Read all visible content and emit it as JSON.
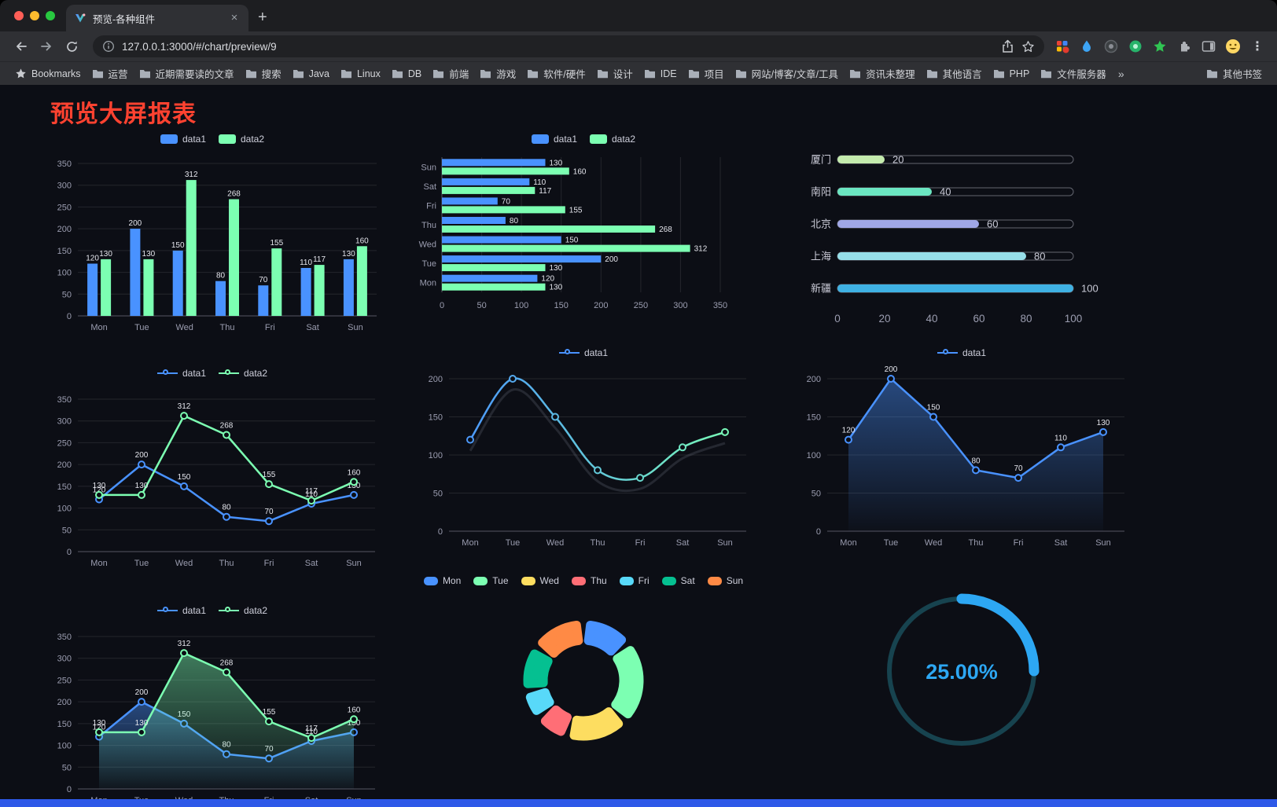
{
  "browser": {
    "tab_title": "预览-各种组件",
    "url": "127.0.0.1:3000/#/chart/preview/9",
    "bookmarks_label": "Bookmarks",
    "bookmarks": [
      "运营",
      "近期需要读的文章",
      "搜索",
      "Java",
      "Linux",
      "DB",
      "前端",
      "游戏",
      "软件/硬件",
      "设计",
      "IDE",
      "项目",
      "网站/博客/文章/工具",
      "资讯未整理",
      "其他语言",
      "PHP",
      "文件服务器"
    ],
    "other_bookmarks": "其他书签",
    "icons": {
      "close_tab": "×",
      "new_tab": "+",
      "overflow_chevron": "»",
      "menu": "⋮"
    }
  },
  "page": {
    "title": "预览大屏报表",
    "title_color": "#ff4230"
  },
  "chart_data": [
    {
      "id": "grouped-bar",
      "type": "bar",
      "categories": [
        "Mon",
        "Tue",
        "Wed",
        "Thu",
        "Fri",
        "Sat",
        "Sun"
      ],
      "series": [
        {
          "name": "data1",
          "color": "#4992ff",
          "values": [
            120,
            200,
            150,
            80,
            70,
            110,
            130
          ]
        },
        {
          "name": "data2",
          "color": "#7cffb2",
          "values": [
            130,
            130,
            312,
            268,
            155,
            117,
            160
          ]
        }
      ],
      "ylim": [
        0,
        350
      ],
      "ystep": 50,
      "labels": true,
      "grid": true,
      "legend": true,
      "legend_marker": "rect",
      "legend_position": "top"
    },
    {
      "id": "horizontal-bar",
      "type": "bar-horizontal",
      "categories": [
        "Mon",
        "Tue",
        "Wed",
        "Thu",
        "Fri",
        "Sat",
        "Sun"
      ],
      "series": [
        {
          "name": "data1",
          "color": "#4992ff",
          "values": [
            120,
            200,
            150,
            80,
            70,
            110,
            130
          ]
        },
        {
          "name": "data2",
          "color": "#7cffb2",
          "values": [
            130,
            130,
            312,
            268,
            155,
            117,
            160
          ]
        }
      ],
      "xlim": [
        0,
        350
      ],
      "xstep": 50,
      "labels": true,
      "grid": true,
      "legend": true,
      "legend_marker": "rect",
      "legend_position": "top"
    },
    {
      "id": "capsule-bar",
      "type": "capsule-bar",
      "items": [
        {
          "label": "厦门",
          "value": 20,
          "color": "#c4ebad"
        },
        {
          "label": "南阳",
          "value": 40,
          "color": "#6be6c1"
        },
        {
          "label": "北京",
          "value": 60,
          "color": "#a0a7e6"
        },
        {
          "label": "上海",
          "value": 80,
          "color": "#96dee8"
        },
        {
          "label": "新疆",
          "value": 100,
          "color": "#3fb1e3"
        }
      ],
      "xlim": [
        0,
        100
      ],
      "ticks": [
        0,
        20,
        40,
        60,
        80,
        100
      ],
      "legend": false
    },
    {
      "id": "multi-line",
      "type": "line",
      "categories": [
        "Mon",
        "Tue",
        "Wed",
        "Thu",
        "Fri",
        "Sat",
        "Sun"
      ],
      "series": [
        {
          "name": "data1",
          "color": "#4992ff",
          "values": [
            120,
            200,
            150,
            80,
            70,
            110,
            130
          ]
        },
        {
          "name": "data2",
          "color": "#7cffb2",
          "values": [
            130,
            130,
            312,
            268,
            155,
            117,
            160
          ]
        }
      ],
      "ylim": [
        0,
        350
      ],
      "ystep": 50,
      "labels": true,
      "grid": true,
      "legend": true,
      "legend_marker": "line",
      "legend_position": "top"
    },
    {
      "id": "gradient-line",
      "type": "line",
      "categories": [
        "Mon",
        "Tue",
        "Wed",
        "Thu",
        "Fri",
        "Sat",
        "Sun"
      ],
      "series": [
        {
          "name": "data1",
          "colorStops": [
            "#4992ff",
            "#7cffb2"
          ],
          "values": [
            120,
            200,
            150,
            80,
            70,
            110,
            130
          ],
          "smooth": true,
          "shadow": true
        }
      ],
      "ylim": [
        0,
        200
      ],
      "ystep": 50,
      "labels": false,
      "grid": true,
      "legend": true,
      "legend_marker": "line",
      "legend_position": "top"
    },
    {
      "id": "area-line-blue",
      "type": "line",
      "categories": [
        "Mon",
        "Tue",
        "Wed",
        "Thu",
        "Fri",
        "Sat",
        "Sun"
      ],
      "series": [
        {
          "name": "data1",
          "color": "#4992ff",
          "values": [
            120,
            200,
            150,
            80,
            70,
            110,
            130
          ],
          "area": "#4992ff"
        }
      ],
      "ylim": [
        0,
        200
      ],
      "ystep": 50,
      "labels": true,
      "grid": true,
      "legend": true,
      "legend_marker": "line",
      "legend_position": "top"
    },
    {
      "id": "area-line-two",
      "type": "line",
      "categories": [
        "Mon",
        "Tue",
        "Wed",
        "Thu",
        "Fri",
        "Sat",
        "Sun"
      ],
      "series": [
        {
          "name": "data1",
          "color": "#4992ff",
          "values": [
            120,
            200,
            150,
            80,
            70,
            110,
            130
          ],
          "area": "#4992ff"
        },
        {
          "name": "data2",
          "color": "#7cffb2",
          "values": [
            130,
            130,
            312,
            268,
            155,
            117,
            160
          ],
          "area": "#7cffb2"
        }
      ],
      "ylim": [
        0,
        350
      ],
      "ystep": 50,
      "labels": true,
      "grid": true,
      "legend": true,
      "legend_marker": "line",
      "legend_position": "top"
    },
    {
      "id": "donut",
      "type": "pie",
      "categories": [
        "Mon",
        "Tue",
        "Wed",
        "Thu",
        "Fri",
        "Sat",
        "Sun"
      ],
      "values": [
        120,
        200,
        150,
        80,
        70,
        110,
        130
      ],
      "colors": [
        "#4992ff",
        "#7cffb2",
        "#fddd60",
        "#ff6e76",
        "#58d9f9",
        "#05c091",
        "#ff8a45"
      ],
      "legend": true,
      "legend_marker": "pill",
      "legend_position": "top"
    },
    {
      "id": "gauge",
      "type": "gauge",
      "value": 25,
      "display": "25.00%",
      "color": "#2da7f3",
      "track_color": "#17434f",
      "legend": false
    }
  ]
}
